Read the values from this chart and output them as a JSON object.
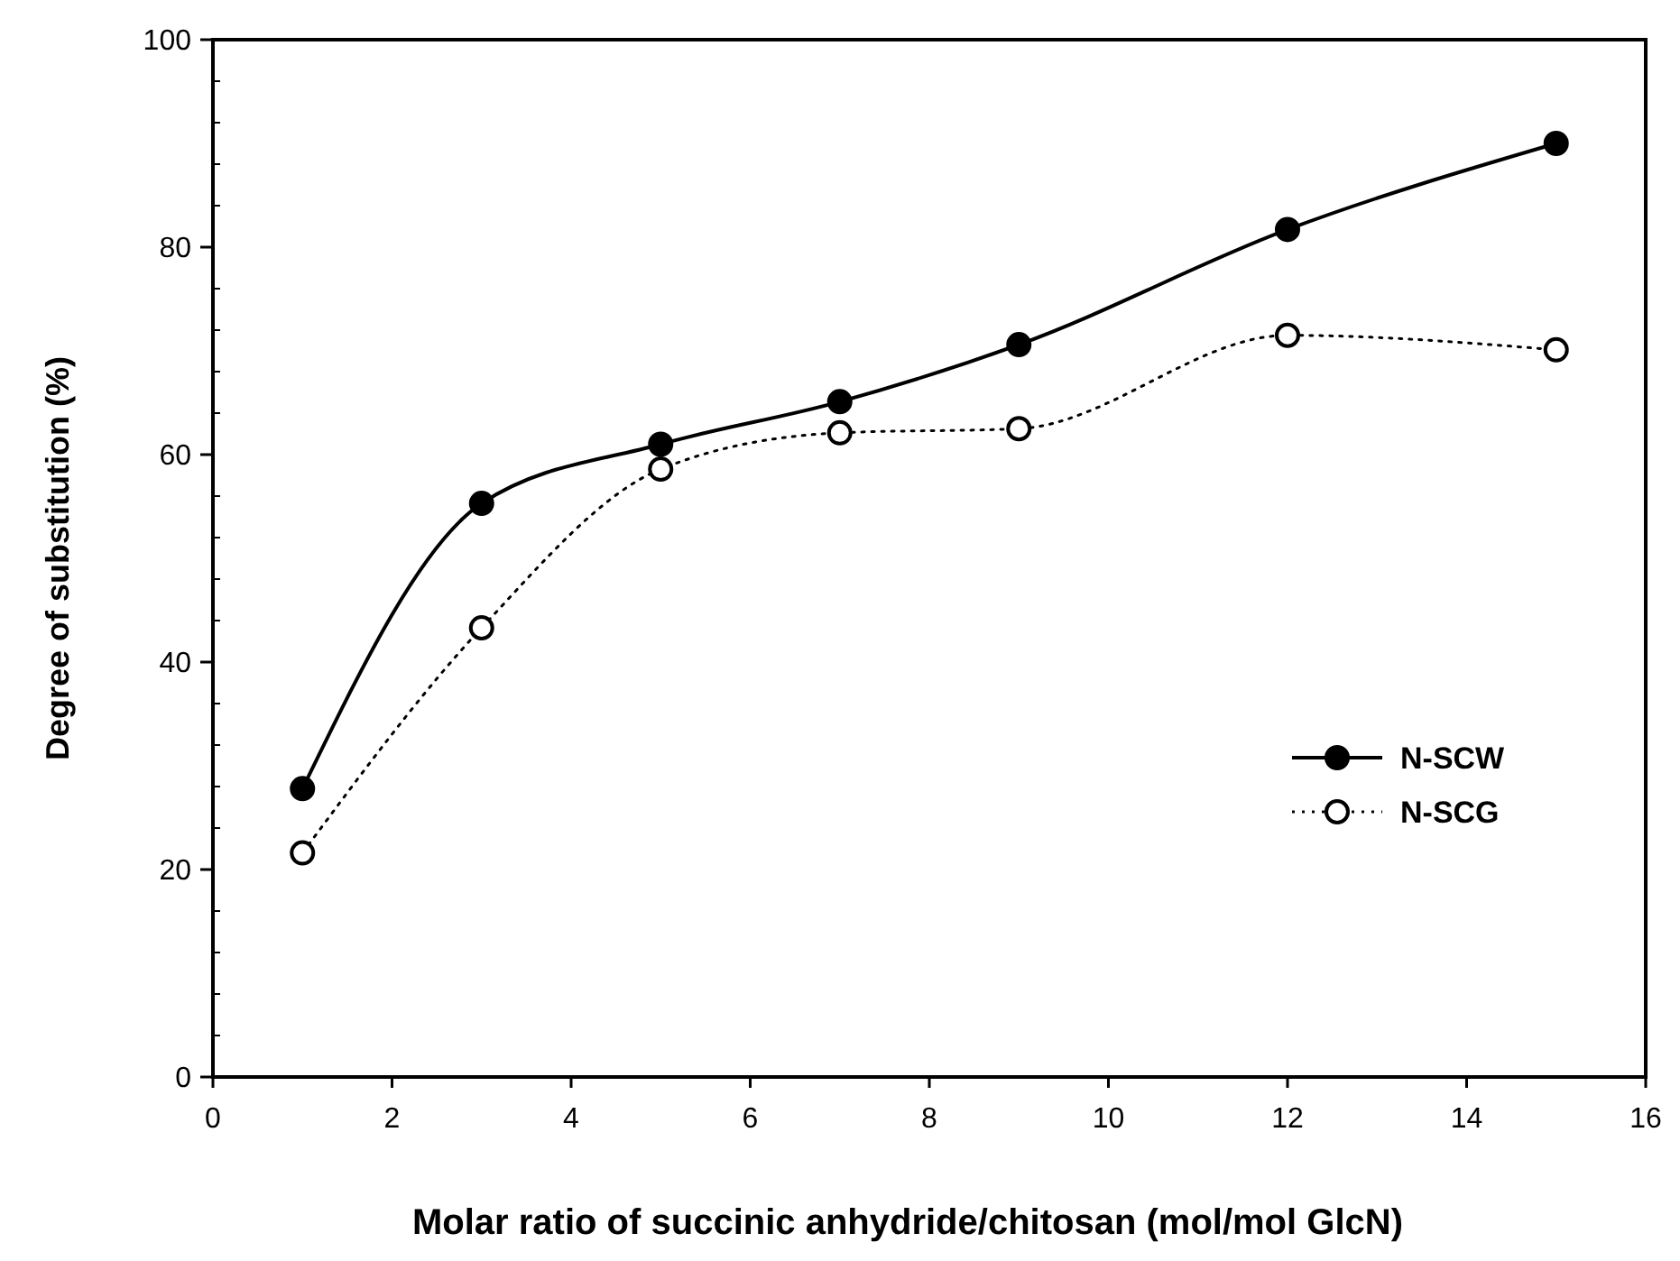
{
  "chart_data": {
    "type": "line",
    "xlabel": "Molar ratio of succinic anhydride/chitosan (mol/mol GlcN)",
    "ylabel": "Degree of substitution (%)",
    "x": [
      1,
      3,
      5,
      7,
      9,
      12,
      15
    ],
    "series": [
      {
        "name": "N-SCW",
        "color": "#000000",
        "values": [
          27.8,
          55.3,
          61.0,
          65.1,
          70.6,
          81.7,
          90.0
        ],
        "marker": "circle",
        "line_style": "solid"
      },
      {
        "name": "N-SCG",
        "color": "#000000",
        "values": [
          21.6,
          43.3,
          58.6,
          62.1,
          62.5,
          71.5,
          70.1
        ],
        "marker": "circle",
        "line_style": "dotted"
      }
    ],
    "xlim": [
      0,
      16
    ],
    "xticks": [
      0,
      2,
      4,
      6,
      8,
      10,
      12,
      14,
      16
    ],
    "ylim": [
      0,
      100
    ],
    "yticks": [
      0,
      20,
      40,
      60,
      80,
      100
    ],
    "grid": false,
    "legend": "right"
  }
}
